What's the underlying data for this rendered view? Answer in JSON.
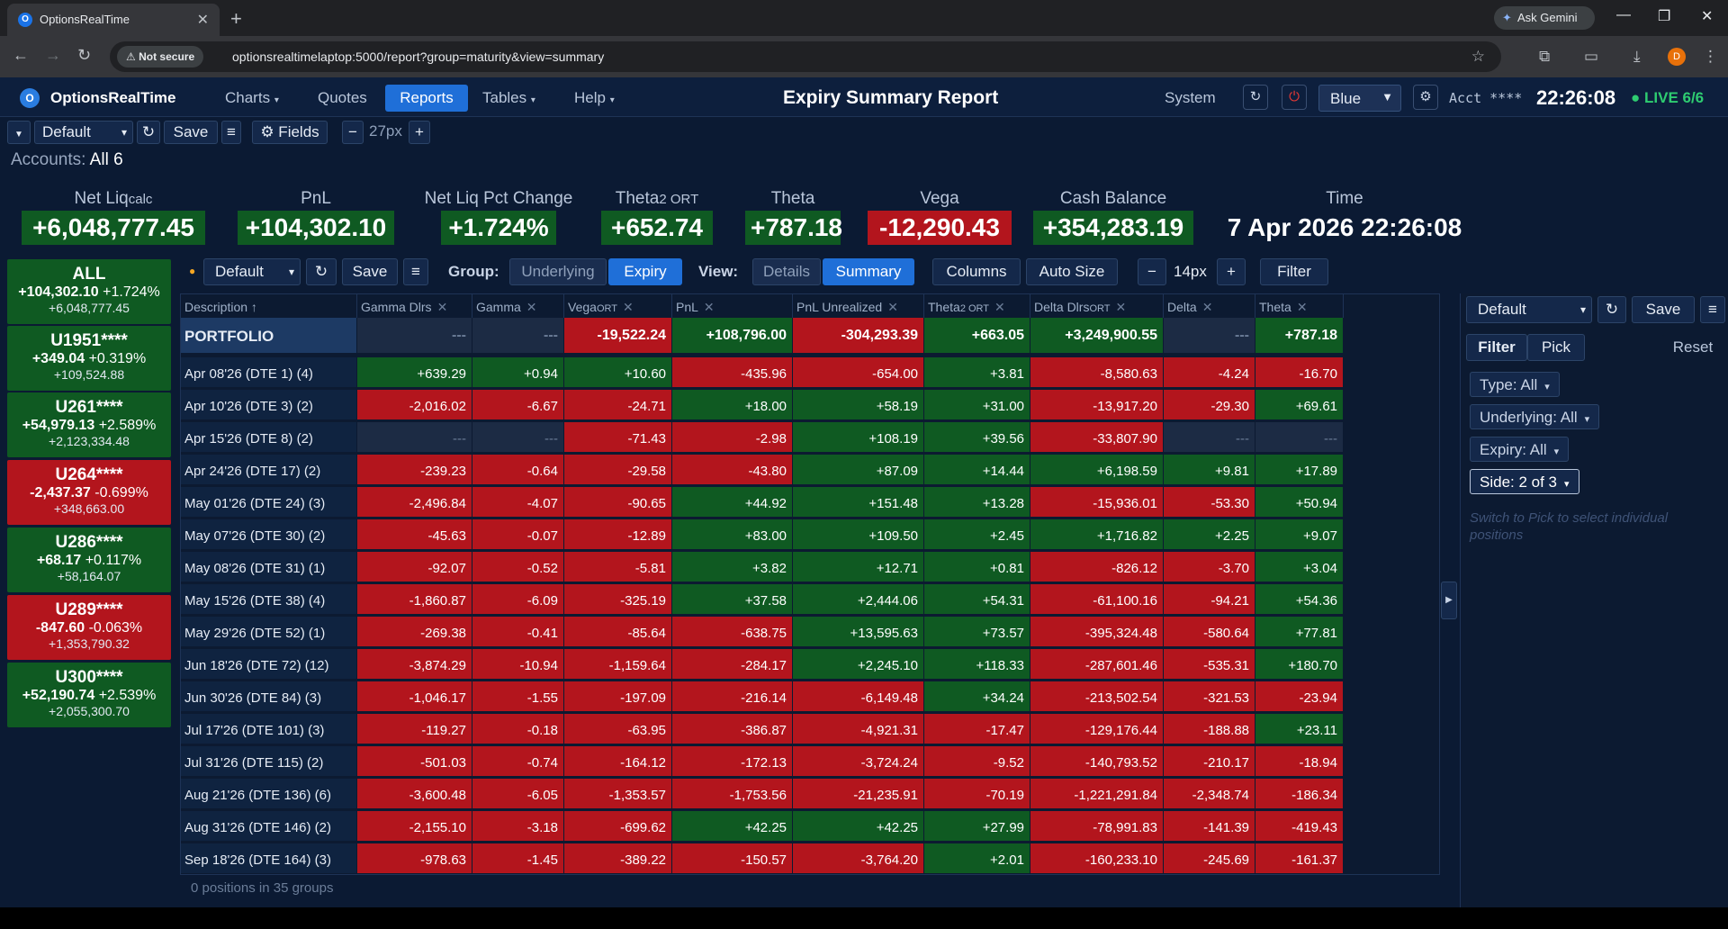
{
  "browser": {
    "tab_title": "OptionsRealTime",
    "ask_gemini": "Ask Gemini",
    "security": "Not secure",
    "url": "optionsrealtimelaptop:5000/report?group=maturity&view=summary",
    "avatar_letter": "D"
  },
  "header": {
    "brand": "OptionsRealTime",
    "menu": [
      "Charts",
      "Quotes",
      "Reports",
      "Tables",
      "Help"
    ],
    "title": "Expiry Summary Report",
    "system": "System",
    "theme": "Blue",
    "acct": "Acct ****",
    "clock": "22:26:08",
    "live": "● LIVE 6/6"
  },
  "toolbar1": {
    "layout": "Default",
    "save": "Save",
    "fields": "⚙ Fields",
    "minus": "−",
    "size": "27px",
    "plus": "+"
  },
  "accounts_line": {
    "label": "Accounts:",
    "value": "All 6"
  },
  "metrics": [
    {
      "label": "Net Liq",
      "sub": "calc",
      "value": "+6,048,777.45",
      "color": "green"
    },
    {
      "label": "PnL",
      "sub": "",
      "value": "+104,302.10",
      "color": "green"
    },
    {
      "label": "Net Liq Pct Change",
      "sub": "",
      "value": "+1.724%",
      "color": "green"
    },
    {
      "label": "Theta",
      "sub": "2 ORT",
      "value": "+652.74",
      "color": "green"
    },
    {
      "label": "Theta",
      "sub": "",
      "value": "+787.18",
      "color": "green"
    },
    {
      "label": "Vega",
      "sub": "",
      "value": "-12,290.43",
      "color": "red"
    },
    {
      "label": "Cash Balance",
      "sub": "",
      "value": "+354,283.19",
      "color": "green"
    },
    {
      "label": "Time",
      "sub": "",
      "value": "7 Apr 2026 22:26:08",
      "color": "none"
    }
  ],
  "account_cards": [
    {
      "name": "ALL",
      "pnl": "+104,302.10",
      "pct": "+1.724%",
      "bal": "+6,048,777.45",
      "color": "green"
    },
    {
      "name": "U1951****",
      "pnl": "+349.04",
      "pct": "+0.319%",
      "bal": "+109,524.88",
      "color": "green"
    },
    {
      "name": "U261****",
      "pnl": "+54,979.13",
      "pct": "+2.589%",
      "bal": "+2,123,334.48",
      "color": "green"
    },
    {
      "name": "U264****",
      "pnl": "-2,437.37",
      "pct": "-0.699%",
      "bal": "+348,663.00",
      "color": "red"
    },
    {
      "name": "U286****",
      "pnl": "+68.17",
      "pct": "+0.117%",
      "bal": "+58,164.07",
      "color": "green"
    },
    {
      "name": "U289****",
      "pnl": "-847.60",
      "pct": "-0.063%",
      "bal": "+1,353,790.32",
      "color": "red"
    },
    {
      "name": "U300****",
      "pnl": "+52,190.74",
      "pct": "+2.539%",
      "bal": "+2,055,300.70",
      "color": "green"
    }
  ],
  "toolbar2": {
    "layout": "Default",
    "save": "Save",
    "group_label": "Group:",
    "group_options": [
      "Underlying",
      "Expiry"
    ],
    "group_selected": "Expiry",
    "view_label": "View:",
    "view_options": [
      "Details",
      "Summary"
    ],
    "view_selected": "Summary",
    "columns": "Columns",
    "autosize": "Auto Size",
    "minus": "−",
    "size": "14px",
    "plus": "+",
    "filter": "Filter"
  },
  "table": {
    "headers": [
      {
        "label": "Description ↑",
        "sub": "",
        "close": false
      },
      {
        "label": "Gamma Dlrs",
        "sub": "",
        "close": true
      },
      {
        "label": "Gamma",
        "sub": "",
        "close": true
      },
      {
        "label": "Vega",
        "sub": "ORT",
        "close": true
      },
      {
        "label": "PnL",
        "sub": "",
        "close": true
      },
      {
        "label": "PnL Unrealized",
        "sub": "",
        "close": true
      },
      {
        "label": "Theta",
        "sub": "2 ORT",
        "close": true
      },
      {
        "label": "Delta Dlrs",
        "sub": "ORT",
        "close": true
      },
      {
        "label": "Delta",
        "sub": "",
        "close": true
      },
      {
        "label": "Theta",
        "sub": "",
        "close": true
      }
    ],
    "portfolio": [
      "PORTFOLIO",
      "---",
      "---",
      "-19,522.24",
      "+108,796.00",
      "-304,293.39",
      "+663.05",
      "+3,249,900.55",
      "---",
      "+787.18"
    ],
    "rows": [
      [
        "Apr 08'26 (DTE 1) (4)",
        "+639.29",
        "+0.94",
        "+10.60",
        "-435.96",
        "-654.00",
        "+3.81",
        "-8,580.63",
        "-4.24",
        "-16.70"
      ],
      [
        "Apr 10'26 (DTE 3) (2)",
        "-2,016.02",
        "-6.67",
        "-24.71",
        "+18.00",
        "+58.19",
        "+31.00",
        "-13,917.20",
        "-29.30",
        "+69.61"
      ],
      [
        "Apr 15'26 (DTE 8) (2)",
        "---",
        "---",
        "-71.43",
        "-2.98",
        "+108.19",
        "+39.56",
        "-33,807.90",
        "---",
        "---"
      ],
      [
        "Apr 24'26 (DTE 17) (2)",
        "-239.23",
        "-0.64",
        "-29.58",
        "-43.80",
        "+87.09",
        "+14.44",
        "+6,198.59",
        "+9.81",
        "+17.89"
      ],
      [
        "May 01'26 (DTE 24) (3)",
        "-2,496.84",
        "-4.07",
        "-90.65",
        "+44.92",
        "+151.48",
        "+13.28",
        "-15,936.01",
        "-53.30",
        "+50.94"
      ],
      [
        "May 07'26 (DTE 30) (2)",
        "-45.63",
        "-0.07",
        "-12.89",
        "+83.00",
        "+109.50",
        "+2.45",
        "+1,716.82",
        "+2.25",
        "+9.07"
      ],
      [
        "May 08'26 (DTE 31) (1)",
        "-92.07",
        "-0.52",
        "-5.81",
        "+3.82",
        "+12.71",
        "+0.81",
        "-826.12",
        "-3.70",
        "+3.04"
      ],
      [
        "May 15'26 (DTE 38) (4)",
        "-1,860.87",
        "-6.09",
        "-325.19",
        "+37.58",
        "+2,444.06",
        "+54.31",
        "-61,100.16",
        "-94.21",
        "+54.36"
      ],
      [
        "May 29'26 (DTE 52) (1)",
        "-269.38",
        "-0.41",
        "-85.64",
        "-638.75",
        "+13,595.63",
        "+73.57",
        "-395,324.48",
        "-580.64",
        "+77.81"
      ],
      [
        "Jun 18'26 (DTE 72) (12)",
        "-3,874.29",
        "-10.94",
        "-1,159.64",
        "-284.17",
        "+2,245.10",
        "+118.33",
        "-287,601.46",
        "-535.31",
        "+180.70"
      ],
      [
        "Jun 30'26 (DTE 84) (3)",
        "-1,046.17",
        "-1.55",
        "-197.09",
        "-216.14",
        "-6,149.48",
        "+34.24",
        "-213,502.54",
        "-321.53",
        "-23.94"
      ],
      [
        "Jul 17'26 (DTE 101) (3)",
        "-119.27",
        "-0.18",
        "-63.95",
        "-386.87",
        "-4,921.31",
        "-17.47",
        "-129,176.44",
        "-188.88",
        "+23.11"
      ],
      [
        "Jul 31'26 (DTE 115) (2)",
        "-501.03",
        "-0.74",
        "-164.12",
        "-172.13",
        "-3,724.24",
        "-9.52",
        "-140,793.52",
        "-210.17",
        "-18.94"
      ],
      [
        "Aug 21'26 (DTE 136) (6)",
        "-3,600.48",
        "-6.05",
        "-1,353.57",
        "-1,753.56",
        "-21,235.91",
        "-70.19",
        "-1,221,291.84",
        "-2,348.74",
        "-186.34"
      ],
      [
        "Aug 31'26 (DTE 146) (2)",
        "-2,155.10",
        "-3.18",
        "-699.62",
        "+42.25",
        "+42.25",
        "+27.99",
        "-78,991.83",
        "-141.39",
        "-419.43"
      ],
      [
        "Sep 18'26 (DTE 164) (3)",
        "-978.63",
        "-1.45",
        "-389.22",
        "-150.57",
        "-3,764.20",
        "+2.01",
        "-160,233.10",
        "-245.69",
        "-161.37"
      ]
    ],
    "footer": "0 positions in 35 groups"
  },
  "right_panel": {
    "layout": "Default",
    "save": "Save",
    "tabs": [
      "Filter",
      "Pick"
    ],
    "tab_selected": "Filter",
    "reset": "Reset",
    "chips": [
      "Type: All",
      "Underlying: All",
      "Expiry: All",
      "Side: 2 of 3"
    ],
    "hint": "Switch to Pick to select individual positions"
  }
}
